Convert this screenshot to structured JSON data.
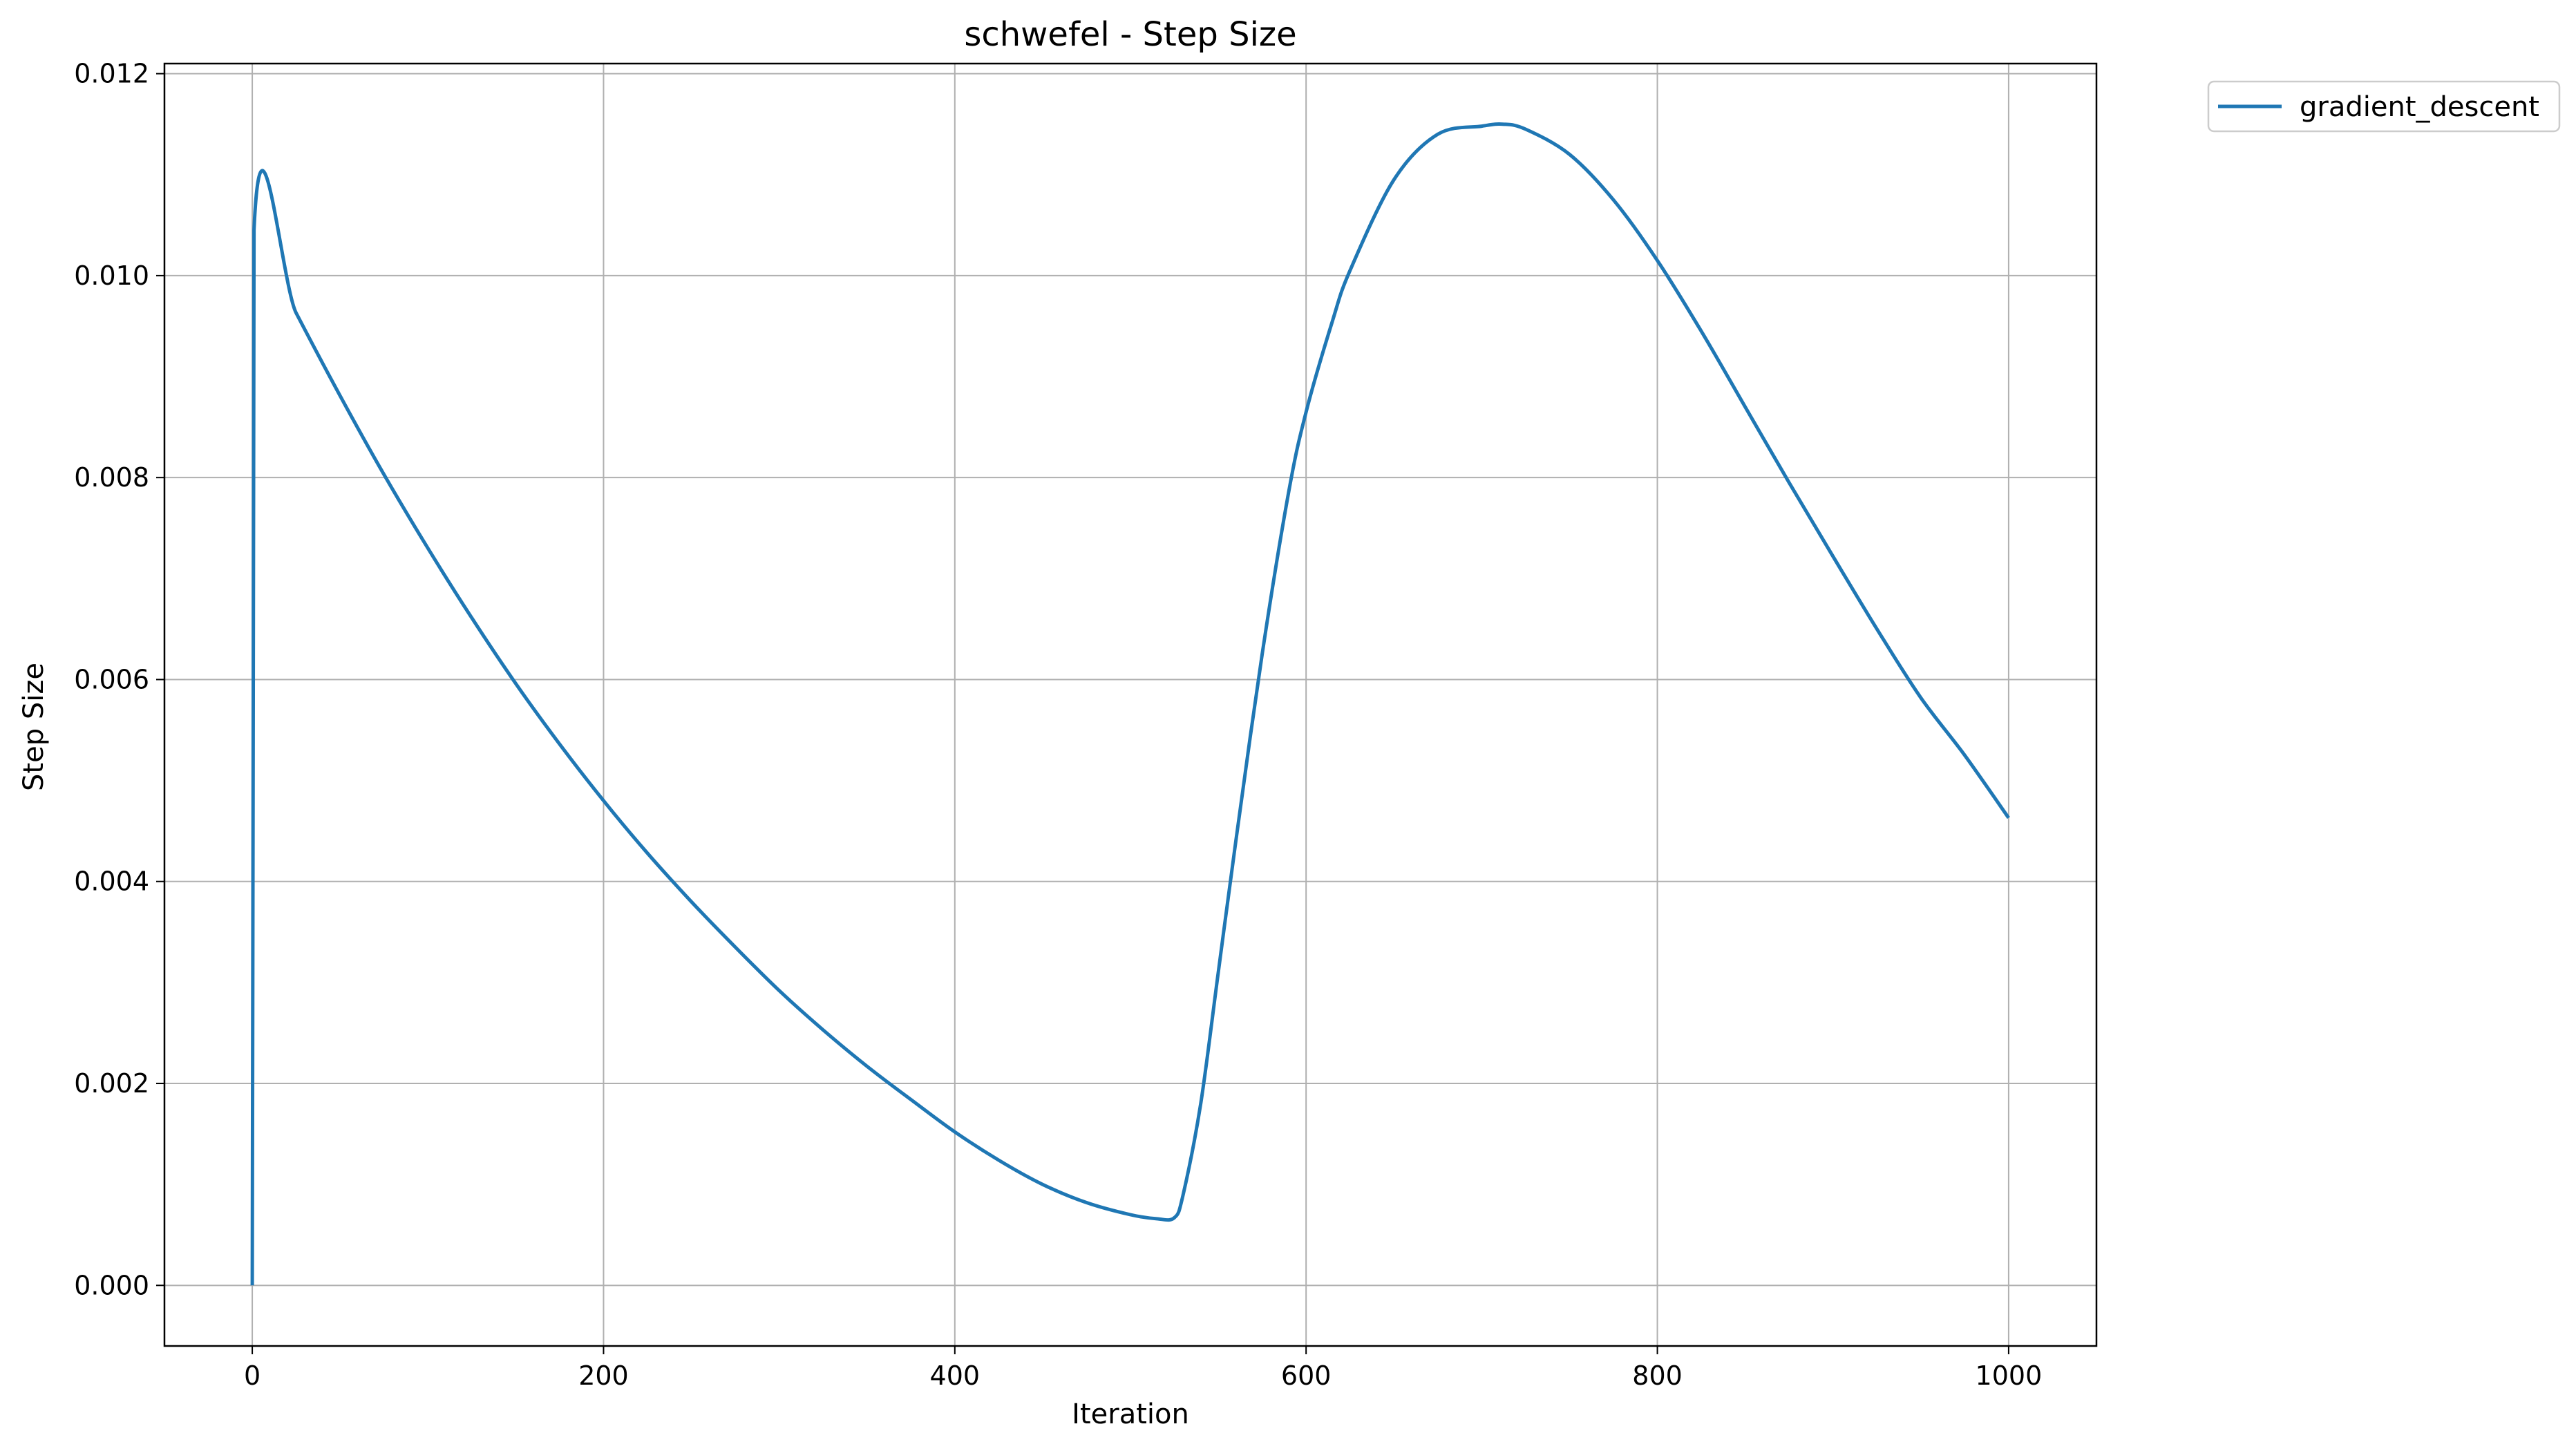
{
  "chart_data": {
    "type": "line",
    "title": "schwefel - Step Size",
    "xlabel": "Iteration",
    "ylabel": "Step Size",
    "xlim": [
      -50,
      1050
    ],
    "ylim": [
      -0.0006,
      0.0121
    ],
    "xticks": [
      0,
      200,
      400,
      600,
      800,
      1000
    ],
    "xtick_labels": [
      "0",
      "200",
      "400",
      "600",
      "800",
      "1000"
    ],
    "yticks": [
      0.0,
      0.002,
      0.004,
      0.006,
      0.008,
      0.01,
      0.012
    ],
    "ytick_labels": [
      "0.000",
      "0.002",
      "0.004",
      "0.006",
      "0.008",
      "0.010",
      "0.012"
    ],
    "grid": true,
    "legend_position": "outside-top-right",
    "series": [
      {
        "name": "gradient_descent",
        "color": "#1f77b4",
        "x": [
          0,
          1,
          25,
          50,
          75,
          100,
          125,
          150,
          175,
          200,
          225,
          250,
          275,
          300,
          325,
          350,
          375,
          400,
          425,
          450,
          475,
          500,
          515,
          525,
          530,
          540,
          550,
          560,
          575,
          590,
          600,
          615,
          625,
          650,
          675,
          700,
          712,
          725,
          750,
          775,
          800,
          825,
          850,
          875,
          900,
          925,
          950,
          975,
          1000
        ],
        "y": [
          0.0,
          0.01045,
          0.00963,
          0.00881,
          0.00803,
          0.0073,
          0.00661,
          0.00596,
          0.00536,
          0.0048,
          0.00428,
          0.0038,
          0.00335,
          0.00292,
          0.00253,
          0.00217,
          0.00184,
          0.00152,
          0.00124,
          0.001,
          0.00082,
          0.0007,
          0.00066,
          0.00067,
          0.0009,
          0.0018,
          0.0031,
          0.0044,
          0.00625,
          0.00785,
          0.00865,
          0.00955,
          0.01005,
          0.01095,
          0.0114,
          0.01148,
          0.0115,
          0.01145,
          0.0112,
          0.01075,
          0.01015,
          0.00945,
          0.0087,
          0.00795,
          0.00722,
          0.0065,
          0.00582,
          0.00525,
          0.00463
        ]
      }
    ]
  }
}
